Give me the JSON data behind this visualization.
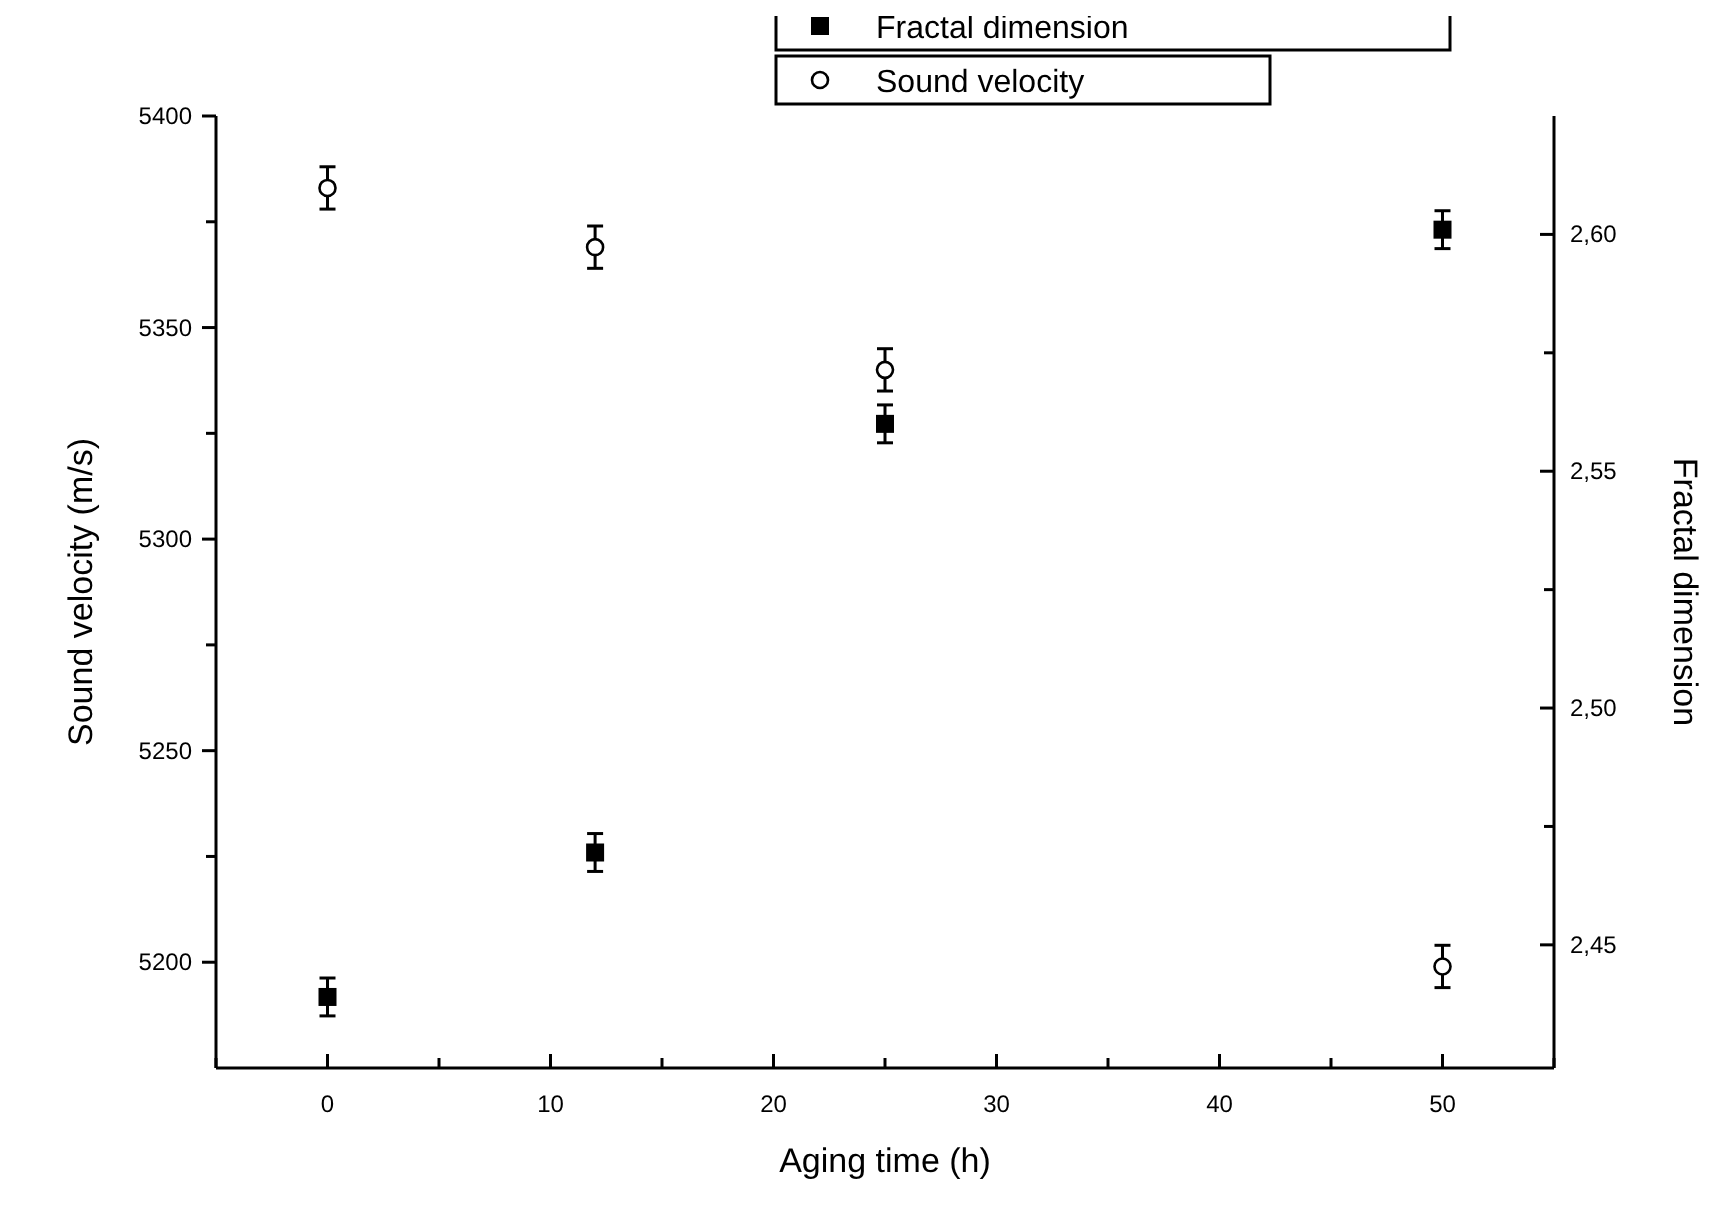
{
  "chart_data": {
    "type": "scatter",
    "xlabel": "Aging time (h)",
    "ylabel": "Sound velocity (m/s)",
    "y2label": "Fractal dimension",
    "xlim": [
      -5,
      55
    ],
    "xticks": [
      {
        "value": -5,
        "label": null
      },
      0,
      {
        "value": 5,
        "label": null
      },
      10,
      {
        "value": 15,
        "label": null
      },
      20,
      {
        "value": 25,
        "label": null
      },
      30,
      {
        "value": 35,
        "label": null
      },
      40,
      {
        "value": 45,
        "label": null
      },
      50,
      {
        "value": 55,
        "label": null
      }
    ],
    "ylim": [
      5175,
      5400
    ],
    "yticks": [
      5200,
      {
        "value": 5225,
        "label": null
      },
      5250,
      {
        "value": 5275,
        "label": null
      },
      5300,
      {
        "value": 5325,
        "label": null
      },
      5350,
      {
        "value": 5375,
        "label": null
      },
      5400
    ],
    "y2lim": [
      2.424,
      2.625
    ],
    "y2ticks": [
      {
        "value": 2.45,
        "label": "2,45"
      },
      {
        "value": 2.475,
        "label": null
      },
      {
        "value": 2.5,
        "label": "2,50"
      },
      {
        "value": 2.525,
        "label": null
      },
      {
        "value": 2.55,
        "label": "2,55"
      },
      {
        "value": 2.575,
        "label": null
      },
      {
        "value": 2.6,
        "label": "2,60"
      }
    ],
    "legend": "top right",
    "grid": false,
    "series": [
      {
        "name": "Fractal dimension",
        "color": "#000000",
        "marker": "square",
        "axis": "y2",
        "x": [
          0,
          12,
          25,
          50
        ],
        "values": [
          2.439,
          2.4695,
          2.56,
          2.601
        ],
        "errors": [
          0.004,
          0.004,
          0.004,
          0.004
        ]
      },
      {
        "name": "Sound velocity",
        "color": "#000000",
        "marker": "circle",
        "x": [
          0,
          12,
          25,
          50
        ],
        "values": [
          5383,
          5369,
          5340,
          5199
        ],
        "errors": [
          5,
          5,
          5,
          5
        ]
      }
    ]
  }
}
